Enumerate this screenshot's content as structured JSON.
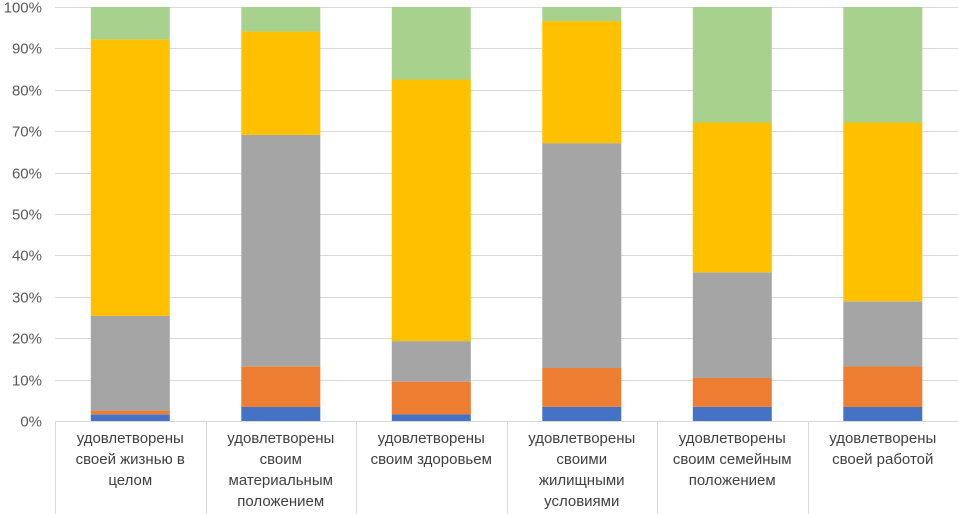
{
  "chart_data": {
    "type": "bar",
    "stacked": true,
    "normalized": true,
    "categories": [
      [
        "удовлетворены",
        "своей жизнью в",
        "целом"
      ],
      [
        "удовлетворены",
        "своим",
        "материальным",
        "положением"
      ],
      [
        "удовлетворены",
        "своим здоровьем"
      ],
      [
        "удовлетворены",
        "своими",
        "жилищными",
        "условиями"
      ],
      [
        "удовлетворены",
        "своим семейным",
        "положением"
      ],
      [
        "удовлетворены",
        "своей работой"
      ]
    ],
    "series": [
      {
        "name": "",
        "color": "#4472C4",
        "values": [
          1.6,
          3.4,
          1.6,
          3.4,
          3.4,
          3.4
        ]
      },
      {
        "name": "",
        "color": "#ED7D31",
        "values": [
          0.9,
          9.8,
          7.9,
          9.4,
          7.0,
          9.8
        ]
      },
      {
        "name": "",
        "color": "#A5A5A5",
        "values": [
          22.9,
          55.9,
          9.8,
          54.3,
          25.5,
          15.7
        ]
      },
      {
        "name": "",
        "color": "#FFC000",
        "values": [
          66.8,
          25.0,
          63.2,
          29.5,
          36.2,
          43.2
        ]
      },
      {
        "name": "",
        "color": "#A9D18E",
        "values": [
          7.8,
          5.9,
          17.5,
          3.4,
          27.9,
          27.9
        ]
      }
    ],
    "yticks": [
      "0%",
      "10%",
      "20%",
      "30%",
      "40%",
      "50%",
      "60%",
      "70%",
      "80%",
      "90%",
      "100%"
    ],
    "ylim": [
      0,
      100
    ],
    "title": "",
    "xlabel": "",
    "ylabel": "",
    "grid": true,
    "legend": "none"
  }
}
